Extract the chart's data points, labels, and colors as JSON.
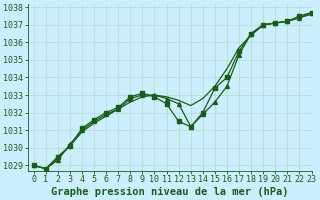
{
  "title": "Graphe pression niveau de la mer (hPa)",
  "background_color": "#cceeff",
  "grid_color": "#b8ddd0",
  "line_color": "#1a5c1a",
  "xlim": [
    -0.5,
    23
  ],
  "ylim": [
    1028.7,
    1038.2
  ],
  "yticks": [
    1029,
    1030,
    1031,
    1032,
    1033,
    1034,
    1035,
    1036,
    1037,
    1038
  ],
  "xticks": [
    0,
    1,
    2,
    3,
    4,
    5,
    6,
    7,
    8,
    9,
    10,
    11,
    12,
    13,
    14,
    15,
    16,
    17,
    18,
    19,
    20,
    21,
    22,
    23
  ],
  "series_plain_x": [
    0,
    1,
    2,
    3,
    4,
    5,
    6,
    7,
    8,
    9,
    10,
    11,
    12,
    13,
    14,
    15,
    16,
    17,
    18,
    19,
    20,
    21,
    22,
    23
  ],
  "series_plain_y": [
    1029.0,
    1028.8,
    1029.4,
    1030.1,
    1030.9,
    1031.4,
    1031.8,
    1032.2,
    1032.6,
    1032.9,
    1033.0,
    1032.9,
    1032.7,
    1032.4,
    1032.8,
    1033.5,
    1034.5,
    1035.7,
    1036.4,
    1037.0,
    1037.1,
    1037.2,
    1037.4,
    1037.6
  ],
  "series_tri_x": [
    0,
    1,
    2,
    3,
    4,
    5,
    6,
    7,
    8,
    9,
    10,
    11,
    12,
    13,
    14,
    15,
    16,
    17,
    18,
    19,
    20,
    21,
    22,
    23
  ],
  "series_tri_y": [
    1029.0,
    1028.8,
    1029.3,
    1030.2,
    1031.0,
    1031.5,
    1031.9,
    1032.2,
    1032.8,
    1033.0,
    1033.0,
    1032.8,
    1032.5,
    1031.2,
    1031.9,
    1032.6,
    1033.5,
    1035.3,
    1036.5,
    1037.0,
    1037.1,
    1037.2,
    1037.4,
    1037.7
  ],
  "series_sq_x": [
    0,
    1,
    2,
    3,
    4,
    5,
    6,
    7,
    8,
    9,
    10,
    11,
    12,
    13,
    14,
    15,
    16,
    17,
    18,
    19,
    20,
    21,
    22,
    23
  ],
  "series_sq_y": [
    1029.0,
    1028.8,
    1029.5,
    1030.1,
    1031.1,
    1031.6,
    1032.0,
    1032.3,
    1032.9,
    1033.1,
    1032.9,
    1032.5,
    1031.5,
    1031.2,
    1032.0,
    1033.4,
    1034.0,
    1035.5,
    1036.5,
    1037.0,
    1037.1,
    1037.2,
    1037.5,
    1037.7
  ],
  "title_fontsize": 7.5,
  "tick_fontsize": 6.0
}
